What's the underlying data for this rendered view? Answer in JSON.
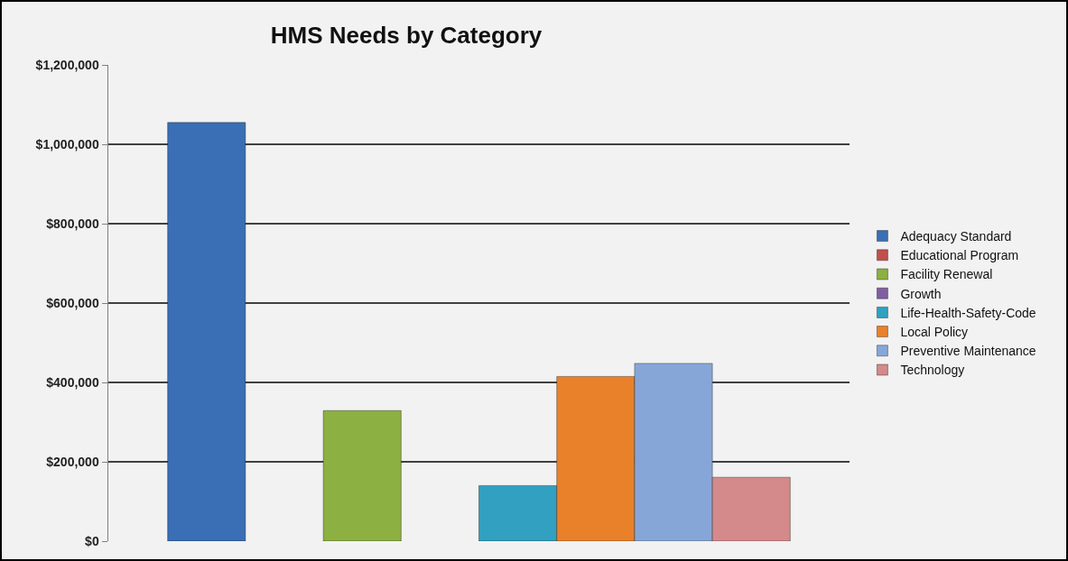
{
  "chart_data": {
    "type": "bar",
    "title": "HMS Needs by Category",
    "categories": [
      null
    ],
    "series": [
      {
        "name": "Adequacy Standard",
        "color": "#3a6fb5",
        "values": [
          1055000
        ]
      },
      {
        "name": "Educational Program",
        "color": "#c0504d",
        "values": [
          null
        ]
      },
      {
        "name": "Facility Renewal",
        "color": "#8db042",
        "values": [
          329000
        ]
      },
      {
        "name": "Growth",
        "color": "#7f5fa1",
        "values": [
          null
        ]
      },
      {
        "name": "Life-Health-Safety-Code",
        "color": "#32a0c0",
        "values": [
          140000
        ]
      },
      {
        "name": "Local Policy",
        "color": "#e9812b",
        "values": [
          415000
        ]
      },
      {
        "name": "Preventive Maintenance",
        "color": "#87a6d8",
        "values": [
          448000
        ]
      },
      {
        "name": "Technology",
        "color": "#d48a8a",
        "values": [
          161000
        ]
      }
    ],
    "ylim": [
      0,
      1200000
    ],
    "yticks": [
      {
        "value": 0,
        "label": "$0"
      },
      {
        "value": 200000,
        "label": "$200,000"
      },
      {
        "value": 400000,
        "label": "$400,000"
      },
      {
        "value": 600000,
        "label": "$600,000"
      },
      {
        "value": 800000,
        "label": "$800,000"
      },
      {
        "value": 1000000,
        "label": "$1,000,000"
      },
      {
        "value": 1200000,
        "label": "$1,200,000"
      }
    ],
    "grid": "y",
    "legend": "right",
    "tick_labels": "y"
  }
}
